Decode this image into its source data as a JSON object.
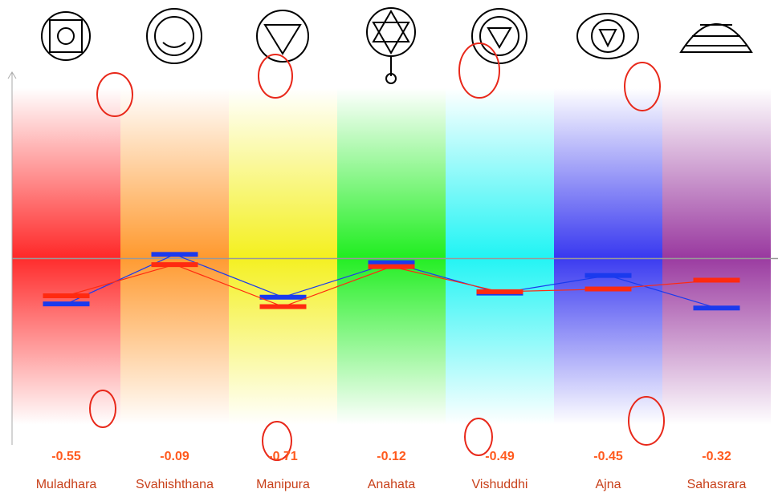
{
  "chart_data": {
    "type": "line",
    "categories": [
      "Muladhara",
      "Svahishthana",
      "Manipura",
      "Anahata",
      "Vishuddhi",
      "Ajna",
      "Sahasrara"
    ],
    "band_colors": [
      "#ff2a2a",
      "#ff9a30",
      "#f4f020",
      "#22ee22",
      "#22f4f4",
      "#3a3af0",
      "#9a3aa0"
    ],
    "series": [
      {
        "color": "#ff2a10",
        "values": [
          -0.55,
          -0.09,
          -0.71,
          -0.12,
          -0.49,
          -0.45,
          -0.32
        ]
      },
      {
        "color": "#1a3aee",
        "values": [
          -0.67,
          0.06,
          -0.57,
          -0.06,
          -0.51,
          -0.25,
          -0.73
        ]
      }
    ],
    "label_color": "#ff5a1e",
    "ylim": [
      -2.75,
      2.75
    ]
  }
}
